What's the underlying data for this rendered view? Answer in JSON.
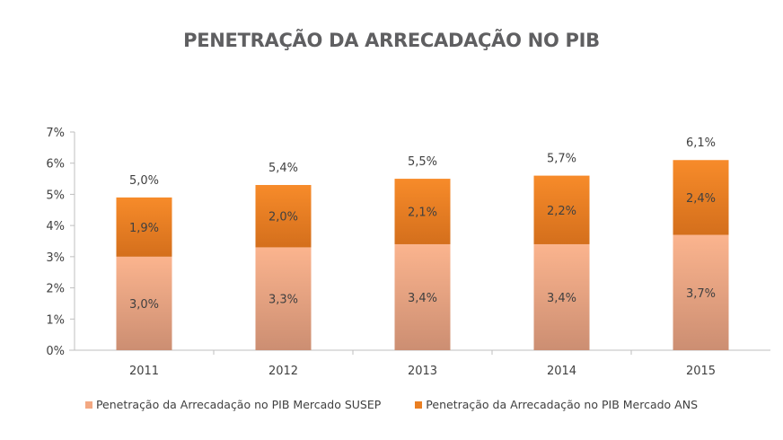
{
  "chart_data": {
    "type": "bar",
    "stacked": true,
    "title": "PENETRAÇÃO DA ARRECADAÇÃO NO PIB",
    "xlabel": "",
    "ylabel": "",
    "categories": [
      "2011",
      "2012",
      "2013",
      "2014",
      "2015"
    ],
    "series": [
      {
        "name": "Penetração da Arrecadação no PIB Mercado SUSEP",
        "values": [
          3.0,
          3.3,
          3.4,
          3.4,
          3.7
        ],
        "labels": [
          "3,0%",
          "3,3%",
          "3,4%",
          "3,4%",
          "3,7%"
        ],
        "color_top": "#fbb48e",
        "color_bottom": "#cc8e72"
      },
      {
        "name": "Penetração da Arrecadação no PIB Mercado ANS",
        "values": [
          1.9,
          2.0,
          2.1,
          2.2,
          2.4
        ],
        "labels": [
          "1,9%",
          "2,0%",
          "2,1%",
          "2,2%",
          "2,4%"
        ],
        "color_top": "#f78b2a",
        "color_bottom": "#d46f1c"
      }
    ],
    "totals": [
      5.0,
      5.4,
      5.5,
      5.7,
      6.1
    ],
    "total_labels": [
      "5,0%",
      "5,4%",
      "5,5%",
      "5,7%",
      "6,1%"
    ],
    "ylim": [
      0,
      7
    ],
    "yticks": [
      0,
      1,
      2,
      3,
      4,
      5,
      6,
      7
    ],
    "ytick_labels": [
      "0%",
      "1%",
      "2%",
      "3%",
      "4%",
      "5%",
      "6%",
      "7%"
    ],
    "grid": false,
    "legend_position": "bottom"
  }
}
